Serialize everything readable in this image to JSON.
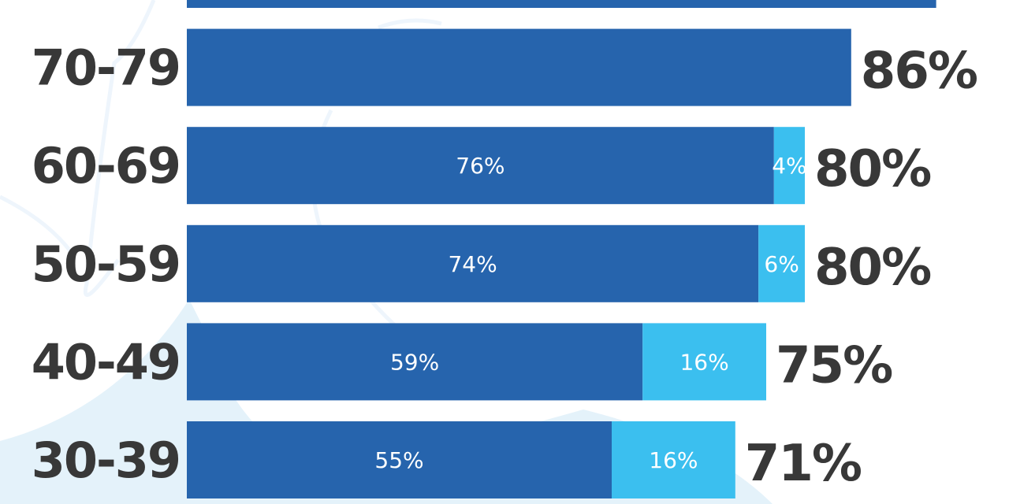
{
  "chart_data": {
    "type": "bar",
    "orientation": "horizontal",
    "stacked": true,
    "colors": {
      "primary": "#2664ad",
      "secondary": "#3bbfef",
      "text": "#383838"
    },
    "xlim": [
      0,
      100
    ],
    "grid": false,
    "rows": [
      {
        "category": "",
        "total": null,
        "segments": [
          97
        ],
        "segment_labels": [],
        "total_label": ""
      },
      {
        "category": "70-79",
        "total": 86,
        "segments": [
          86
        ],
        "segment_labels": [
          ""
        ],
        "total_label": "86%"
      },
      {
        "category": "60-69",
        "total": 80,
        "segments": [
          76,
          4
        ],
        "segment_labels": [
          "76%",
          "4%"
        ],
        "total_label": "80%"
      },
      {
        "category": "50-59",
        "total": 80,
        "segments": [
          74,
          6
        ],
        "segment_labels": [
          "74%",
          "6%"
        ],
        "total_label": "80%"
      },
      {
        "category": "40-49",
        "total": 75,
        "segments": [
          59,
          16
        ],
        "segment_labels": [
          "59%",
          "16%"
        ],
        "total_label": "75%"
      },
      {
        "category": "30-39",
        "total": 71,
        "segments": [
          55,
          16
        ],
        "segment_labels": [
          "55%",
          "16%"
        ],
        "total_label": "71%"
      }
    ]
  }
}
